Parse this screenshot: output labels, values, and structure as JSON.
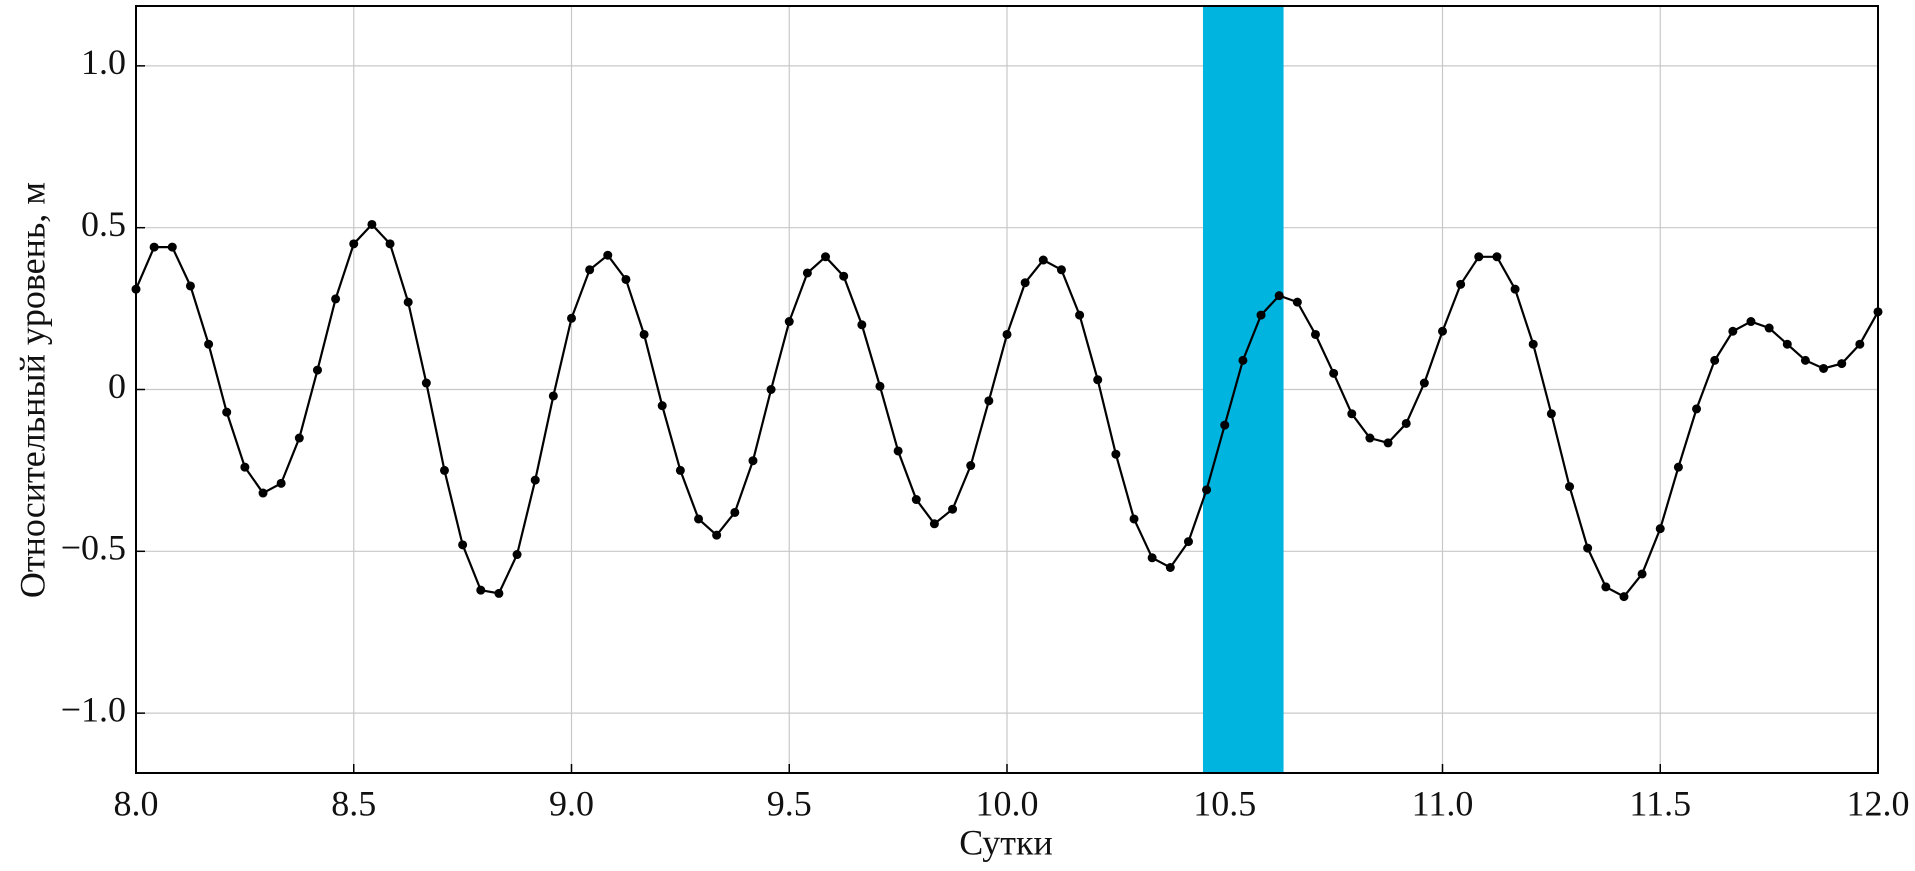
{
  "chart_data": {
    "type": "line",
    "x_label": "Сутки",
    "y_label": "Относительный уровень, м",
    "x": [
      8.0,
      8.0417,
      8.0833,
      8.125,
      8.1667,
      8.2083,
      8.25,
      8.2917,
      8.3333,
      8.375,
      8.4167,
      8.4583,
      8.5,
      8.5417,
      8.5833,
      8.625,
      8.6667,
      8.7083,
      8.75,
      8.7917,
      8.8333,
      8.875,
      8.9167,
      8.9583,
      9.0,
      9.0417,
      9.0833,
      9.125,
      9.1667,
      9.2083,
      9.25,
      9.2917,
      9.3333,
      9.375,
      9.4167,
      9.4583,
      9.5,
      9.5417,
      9.5833,
      9.625,
      9.6667,
      9.7083,
      9.75,
      9.7917,
      9.8333,
      9.875,
      9.9167,
      9.9583,
      10.0,
      10.0417,
      10.0833,
      10.125,
      10.1667,
      10.2083,
      10.25,
      10.2917,
      10.3333,
      10.375,
      10.4167,
      10.4583,
      10.5,
      10.5417,
      10.5833,
      10.625,
      10.6667,
      10.7083,
      10.75,
      10.7917,
      10.8333,
      10.875,
      10.9167,
      10.9583,
      11.0,
      11.0417,
      11.0833,
      11.125,
      11.1667,
      11.2083,
      11.25,
      11.2917,
      11.3333,
      11.375,
      11.4167,
      11.4583,
      11.5,
      11.5417,
      11.5833,
      11.625,
      11.6667,
      11.7083,
      11.75,
      11.7917,
      11.8333,
      11.875,
      11.9167,
      11.9583,
      12.0
    ],
    "series": [
      {
        "color": "#000000",
        "values": [
          0.31,
          0.44,
          0.44,
          0.32,
          0.14,
          -0.07,
          -0.24,
          -0.32,
          -0.29,
          -0.15,
          0.06,
          0.28,
          0.45,
          0.51,
          0.45,
          0.27,
          0.02,
          -0.25,
          -0.48,
          -0.62,
          -0.63,
          -0.51,
          -0.28,
          -0.02,
          0.22,
          0.37,
          0.415,
          0.34,
          0.17,
          -0.05,
          -0.25,
          -0.4,
          -0.45,
          -0.38,
          -0.22,
          0.0,
          0.21,
          0.36,
          0.41,
          0.35,
          0.2,
          0.01,
          -0.19,
          -0.34,
          -0.415,
          -0.37,
          -0.235,
          -0.035,
          0.17,
          0.33,
          0.4,
          0.37,
          0.23,
          0.03,
          -0.2,
          -0.4,
          -0.52,
          -0.55,
          -0.47,
          -0.31,
          -0.11,
          0.09,
          0.23,
          0.29,
          0.27,
          0.17,
          0.05,
          -0.075,
          -0.15,
          -0.165,
          -0.105,
          0.02,
          0.18,
          0.325,
          0.41,
          0.41,
          0.31,
          0.14,
          -0.075,
          -0.3,
          -0.49,
          -0.61,
          -0.64,
          -0.57,
          -0.43,
          -0.24,
          -0.06,
          0.09,
          0.18,
          0.21,
          0.19,
          0.14,
          0.09,
          0.065,
          0.08,
          0.14,
          0.24
        ]
      }
    ],
    "highlight": {
      "xrange": [
        10.45,
        10.635
      ],
      "color": "#00b4e0"
    },
    "xlim": [
      8.0,
      12.0
    ],
    "ylim": [
      -1.185,
      1.185
    ],
    "xticks": [
      {
        "value": 8,
        "label": "8.0"
      },
      8.5,
      {
        "value": 9,
        "label": "9.0"
      },
      9.5,
      {
        "value": 10,
        "label": "10.0"
      },
      10.5,
      {
        "value": 11,
        "label": "11.0"
      },
      11.5,
      {
        "value": 12,
        "label": "12.0"
      }
    ],
    "yticks": [
      {
        "value": -1,
        "label": "−1.0"
      },
      {
        "value": -0.5,
        "label": "−0.5"
      },
      0,
      {
        "value": 0.5,
        "label": "0.5"
      },
      {
        "value": 1,
        "label": "1.0"
      }
    ],
    "grid": true
  }
}
